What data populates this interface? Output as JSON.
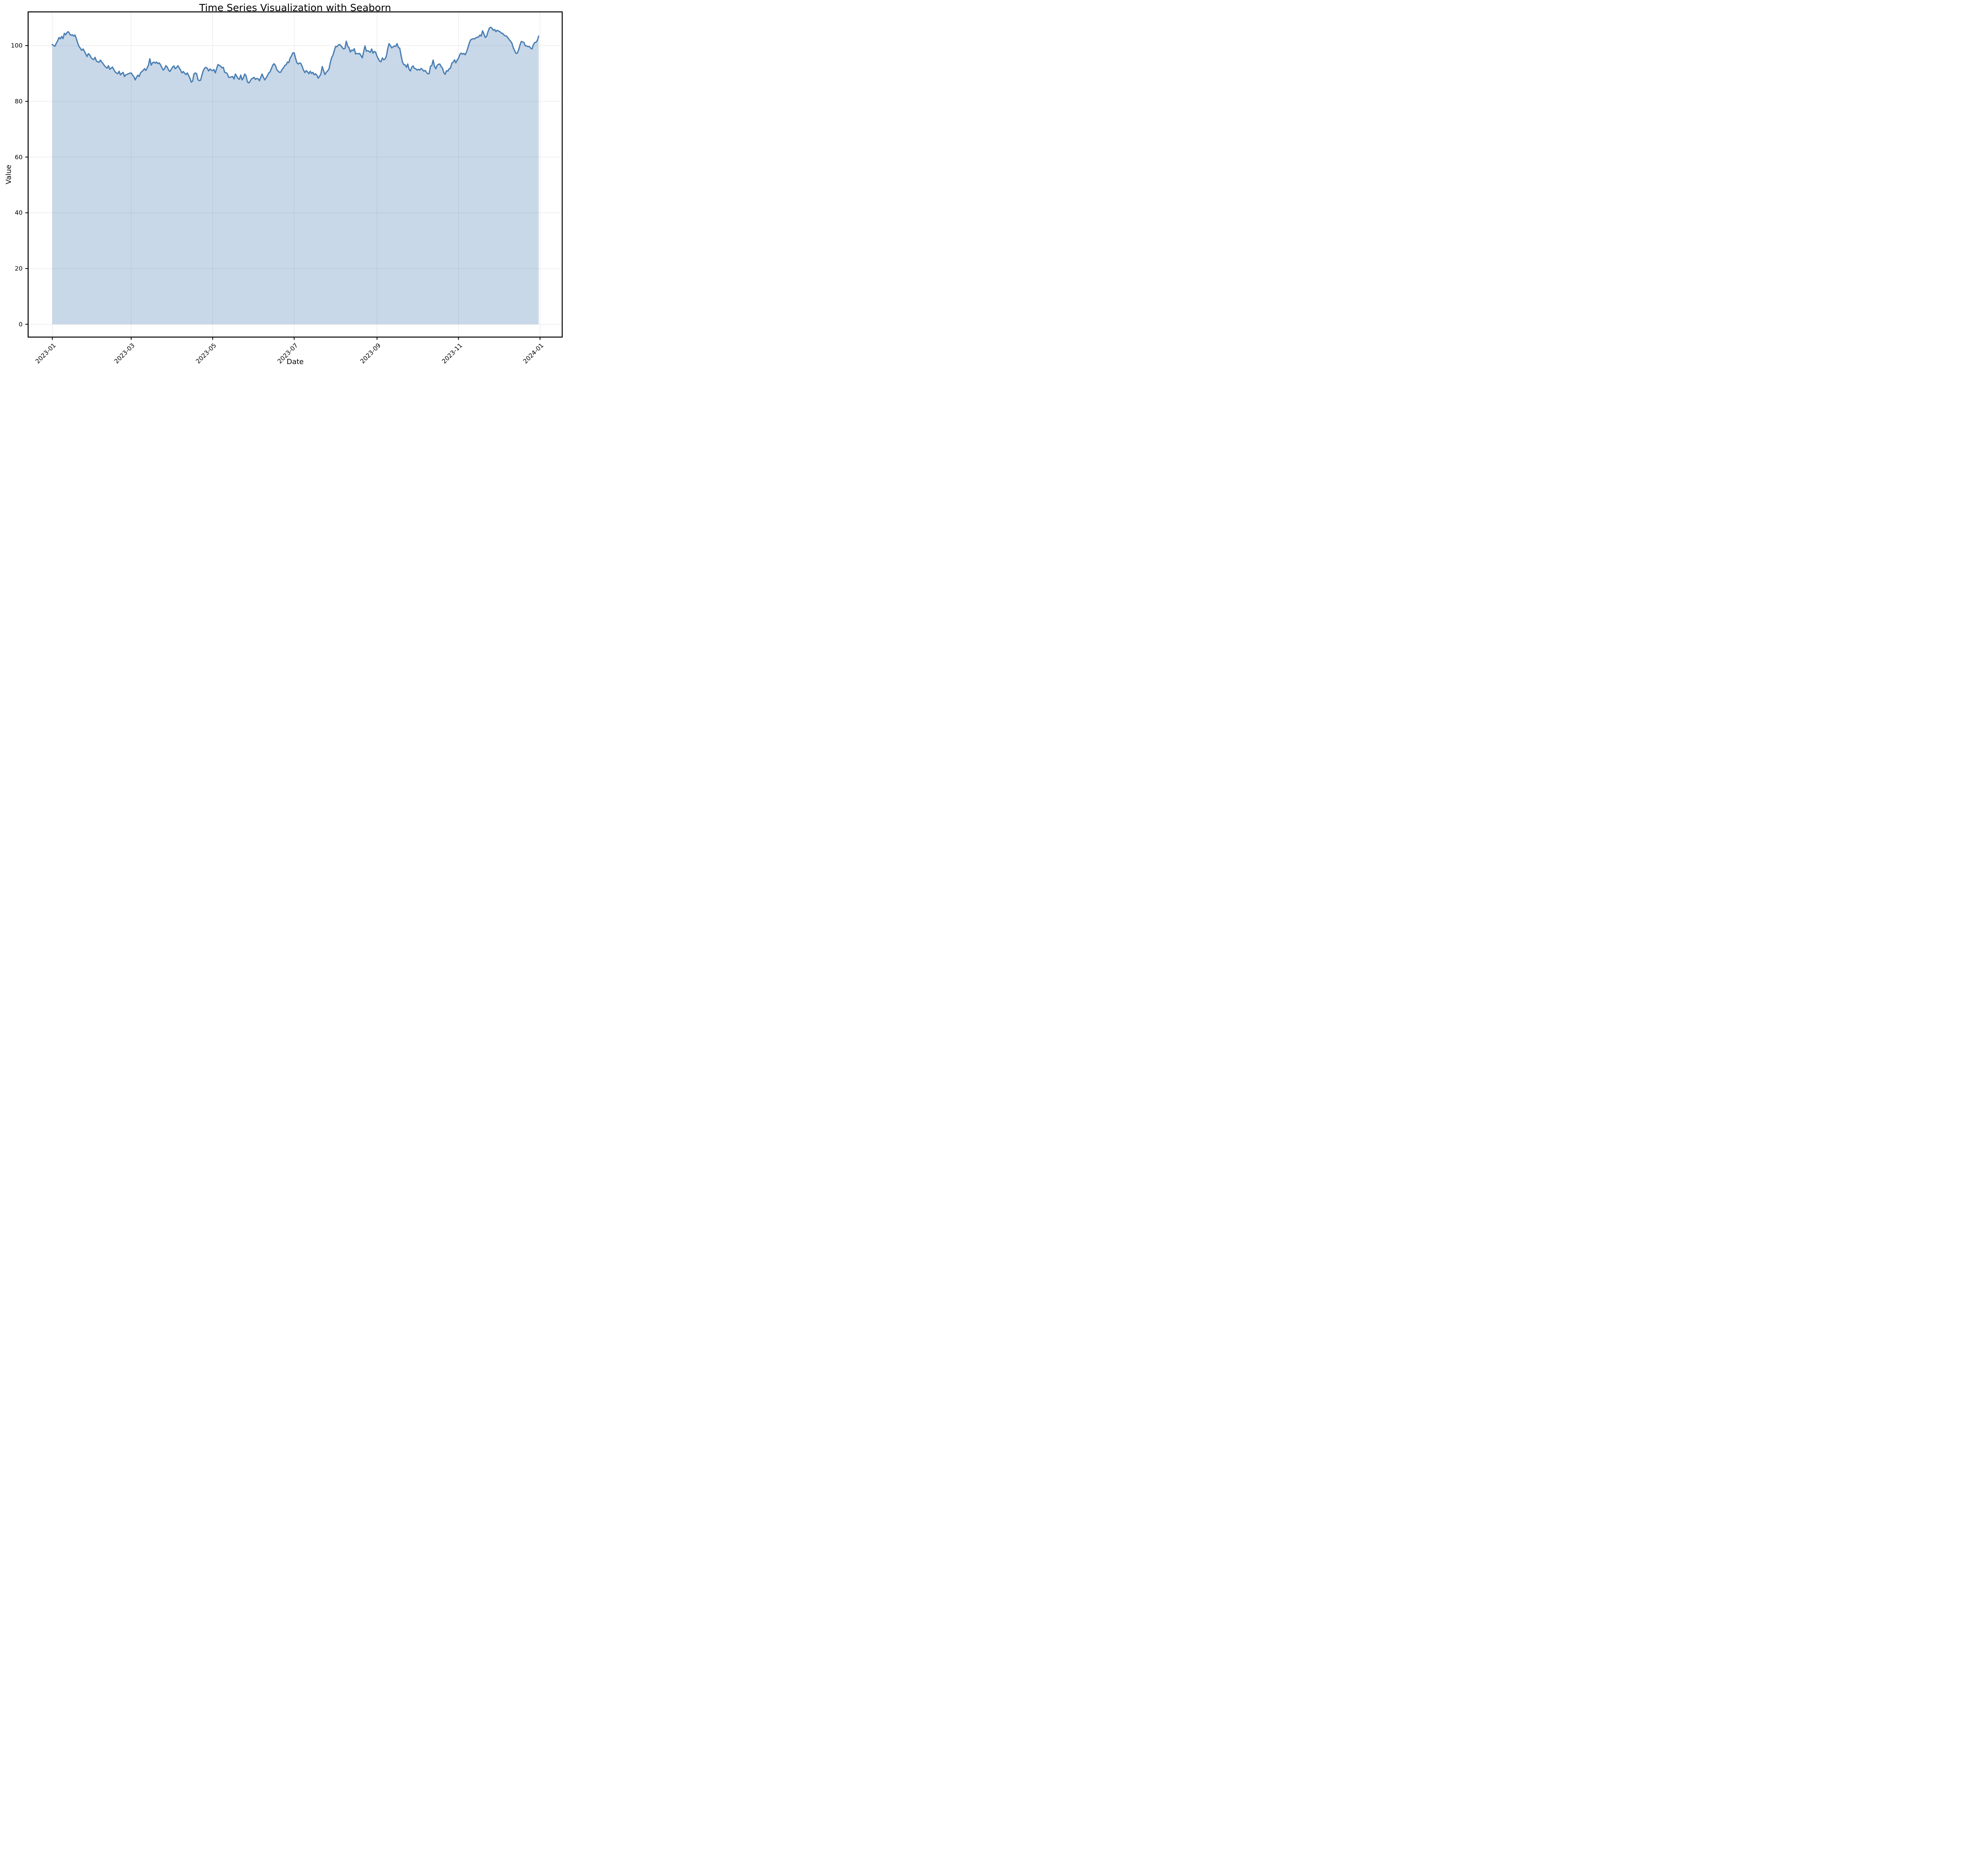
{
  "figure": {
    "title": "Time Series Visualization with Seaborn",
    "xlabel": "Date",
    "ylabel": "Value"
  },
  "colors": {
    "line": "#4a7eb3",
    "fill_rgba": "rgba(74,126,178,0.3)",
    "grid": "#e7e7e7",
    "spine": "#000000",
    "text": "#000000",
    "background": "#ffffff"
  },
  "axes": {
    "y_ticks": [
      0,
      20,
      40,
      60,
      80,
      100
    ],
    "x_ticks": [
      {
        "label": "2023-01",
        "day": 0
      },
      {
        "label": "2023-03",
        "day": 59
      },
      {
        "label": "2023-05",
        "day": 120
      },
      {
        "label": "2023-07",
        "day": 181
      },
      {
        "label": "2023-09",
        "day": 243
      },
      {
        "label": "2023-11",
        "day": 304
      },
      {
        "label": "2024-01",
        "day": 365
      }
    ]
  },
  "chart_data": {
    "type": "area",
    "title": "Time Series Visualization with Seaborn",
    "xlabel": "Date",
    "ylabel": "Value",
    "legend": "none",
    "grid": "on",
    "series_name": "Value",
    "start_date": "2023-01-01",
    "end_date": "2023-12-31",
    "frequency": "daily",
    "xlim_days": [
      -18.1,
      381.6
    ],
    "ylim": [
      -4.6,
      112.1
    ],
    "fill_baseline": 0,
    "values": [
      100.4,
      100.0,
      99.8,
      100.9,
      101.7,
      102.9,
      102.4,
      103.3,
      102.5,
      104.4,
      103.9,
      104.7,
      105.0,
      104.2,
      103.7,
      103.9,
      103.4,
      103.8,
      102.5,
      100.9,
      99.7,
      99.0,
      98.3,
      98.8,
      98.0,
      97.0,
      96.1,
      97.1,
      96.7,
      95.7,
      95.2,
      95.0,
      95.8,
      94.4,
      94.2,
      94.0,
      94.8,
      94.1,
      93.5,
      92.8,
      92.3,
      91.9,
      92.8,
      91.5,
      91.9,
      92.3,
      91.4,
      90.6,
      90.2,
      89.9,
      90.8,
      89.5,
      90.0,
      90.4,
      88.9,
      89.5,
      89.7,
      89.9,
      90.1,
      90.2,
      89.5,
      88.9,
      87.7,
      88.6,
      89.4,
      88.9,
      90.2,
      90.7,
      91.1,
      91.7,
      91.1,
      92.0,
      93.1,
      95.3,
      93.0,
      93.8,
      94.1,
      93.7,
      94.1,
      93.5,
      93.8,
      93.1,
      92.1,
      91.2,
      91.7,
      92.8,
      92.3,
      91.2,
      90.7,
      91.5,
      92.3,
      92.7,
      91.7,
      92.1,
      92.8,
      92.0,
      91.2,
      90.2,
      90.7,
      90.1,
      89.6,
      90.2,
      89.3,
      88.3,
      86.9,
      87.3,
      89.8,
      90.2,
      89.9,
      87.8,
      87.4,
      87.6,
      89.5,
      91.0,
      91.9,
      92.2,
      91.8,
      90.9,
      91.6,
      91.2,
      91.0,
      91.4,
      90.2,
      91.8,
      93.2,
      92.9,
      92.6,
      92.0,
      92.2,
      90.4,
      90.3,
      89.9,
      88.6,
      88.6,
      88.8,
      88.9,
      88.0,
      89.8,
      89.0,
      88.2,
      87.9,
      89.4,
      87.7,
      88.4,
      89.8,
      89.2,
      87.0,
      86.6,
      87.2,
      88.0,
      88.3,
      88.6,
      87.9,
      88.2,
      88.1,
      87.4,
      88.6,
      89.8,
      88.6,
      87.7,
      88.4,
      89.2,
      90.2,
      90.6,
      91.8,
      93.0,
      93.5,
      92.8,
      91.4,
      90.8,
      90.4,
      90.5,
      91.5,
      92.0,
      92.9,
      93.1,
      94.1,
      93.9,
      95.6,
      96.3,
      97.4,
      97.4,
      95.6,
      93.9,
      93.4,
      93.8,
      93.6,
      92.5,
      91.2,
      90.3,
      91.0,
      90.6,
      89.9,
      90.8,
      90.0,
      90.4,
      89.5,
      89.9,
      89.4,
      88.3,
      89.0,
      89.8,
      92.5,
      91.0,
      89.6,
      90.4,
      90.9,
      91.5,
      93.8,
      95.6,
      96.5,
      98.1,
      99.7,
      99.6,
      100.2,
      100.4,
      100.0,
      99.3,
      98.8,
      99.0,
      101.6,
      99.8,
      99.3,
      97.7,
      98.4,
      98.2,
      98.9,
      97.0,
      97.2,
      97.0,
      97.2,
      96.4,
      95.6,
      97.8,
      99.9,
      98.0,
      98.2,
      97.9,
      97.6,
      98.8,
      97.3,
      97.9,
      97.6,
      96.2,
      95.3,
      94.4,
      94.2,
      95.6,
      94.9,
      95.2,
      96.2,
      98.8,
      100.7,
      100.0,
      99.2,
      99.5,
      99.9,
      99.7,
      100.7,
      99.3,
      99.1,
      96.5,
      94.2,
      93.2,
      93.1,
      92.2,
      93.4,
      91.5,
      90.9,
      92.3,
      92.7,
      91.8,
      91.7,
      91.2,
      91.5,
      91.2,
      91.8,
      91.4,
      90.8,
      91.1,
      90.4,
      89.9,
      89.9,
      92.6,
      92.8,
      94.8,
      92.6,
      91.7,
      92.9,
      93.3,
      93.4,
      92.5,
      91.9,
      90.3,
      89.7,
      91.0,
      90.8,
      91.7,
      91.9,
      93.7,
      94.0,
      94.9,
      93.8,
      94.8,
      95.5,
      96.8,
      97.3,
      96.9,
      97.2,
      96.7,
      97.7,
      99.2,
      100.8,
      102.0,
      102.3,
      102.5,
      102.4,
      102.8,
      103.0,
      103.1,
      103.8,
      103.4,
      105.3,
      104.2,
      102.9,
      103.3,
      104.9,
      106.2,
      106.6,
      106.3,
      105.5,
      105.8,
      105.0,
      105.5,
      105.2,
      105.0,
      104.5,
      104.4,
      103.8,
      103.5,
      103.4,
      102.8,
      102.1,
      101.6,
      100.8,
      99.2,
      98.2,
      97.2,
      97.3,
      98.5,
      100.2,
      101.5,
      101.3,
      101.1,
      99.9,
      99.9,
      99.6,
      99.7,
      99.1,
      98.8,
      100.3,
      101.1,
      101.2,
      101.9,
      103.4
    ]
  }
}
